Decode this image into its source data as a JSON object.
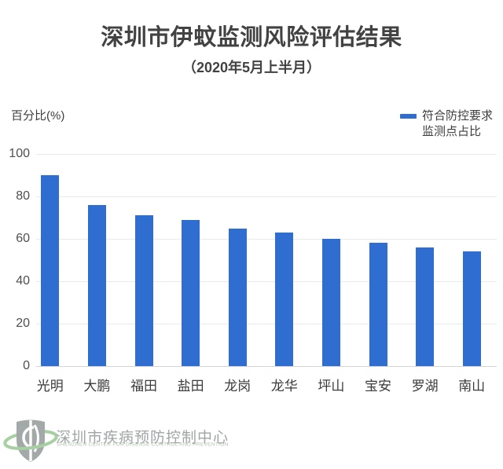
{
  "header": {
    "title": "深圳市伊蚊监测风险评估结果",
    "subtitle": "（2020年5月上半月）"
  },
  "legend": {
    "line1": "符合防控要求",
    "line2": "监测点占比"
  },
  "axis": {
    "y_title": "百分比(%)"
  },
  "chart_data": {
    "type": "bar",
    "title": "深圳市伊蚊监测风险评估结果",
    "subtitle": "（2020年5月上半月）",
    "ylabel": "百分比(%)",
    "xlabel": "",
    "categories": [
      "光明",
      "大鹏",
      "福田",
      "盐田",
      "龙岗",
      "龙华",
      "坪山",
      "宝安",
      "罗湖",
      "南山"
    ],
    "values": [
      90,
      76,
      71,
      69,
      65,
      63,
      60,
      58,
      56,
      54
    ],
    "series_name": "符合防控要求监测点占比",
    "yticks": [
      0,
      20,
      40,
      60,
      80,
      100
    ],
    "ylim": [
      0,
      100
    ],
    "grid": true,
    "legend_position": "top-right"
  },
  "footer": {
    "org_cn": "深圳市疾病预防控制中心",
    "org_en": "SHENZHEN CENTER FOR DISEASE CONTROL AND PREVENTION"
  },
  "colors": {
    "accent": "#2F6DD0",
    "grid": "#EAEAEA",
    "axis_line": "#D5D5D5",
    "logo_gray": "#A3A8A9",
    "logo_green": "#A6CFA2"
  }
}
